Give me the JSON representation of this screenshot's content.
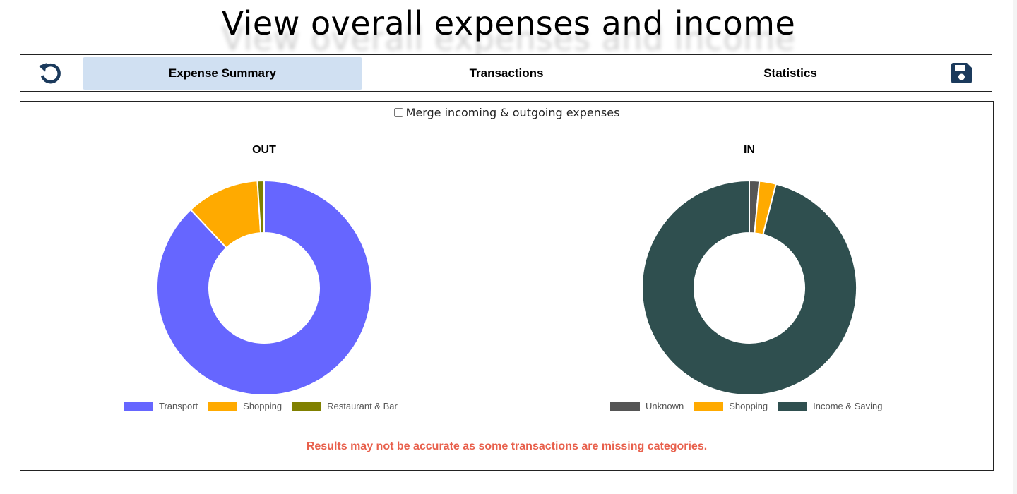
{
  "page_title": "View overall expenses and income",
  "nav": {
    "tabs": [
      {
        "label": "Expense Summary",
        "active": true
      },
      {
        "label": "Transactions",
        "active": false
      },
      {
        "label": "Statistics",
        "active": false
      }
    ],
    "reset_icon": "reset-icon",
    "save_icon": "save-icon"
  },
  "content": {
    "merge_label": "Merge incoming & outgoing expenses",
    "merge_checked": false,
    "warning": "Results may not be accurate as some transactions are missing categories."
  },
  "colors": {
    "accent": "#1b3a5c",
    "active_tab": "#d0e0f2",
    "warning": "#e8604c"
  },
  "chart_data": [
    {
      "type": "pie",
      "variant": "donut",
      "title": "OUT",
      "legend_position": "bottom",
      "categories": [
        "Transport",
        "Shopping",
        "Restaurant & Bar"
      ],
      "values": [
        88,
        11,
        1
      ],
      "colors": [
        "#6666ff",
        "#ffaa00",
        "#808000"
      ]
    },
    {
      "type": "pie",
      "variant": "donut",
      "title": "IN",
      "legend_position": "bottom",
      "categories": [
        "Unknown",
        "Shopping",
        "Income & Saving"
      ],
      "values": [
        1.5,
        2.5,
        96
      ],
      "colors": [
        "#555555",
        "#ffaa00",
        "#2f4f4f"
      ]
    }
  ]
}
